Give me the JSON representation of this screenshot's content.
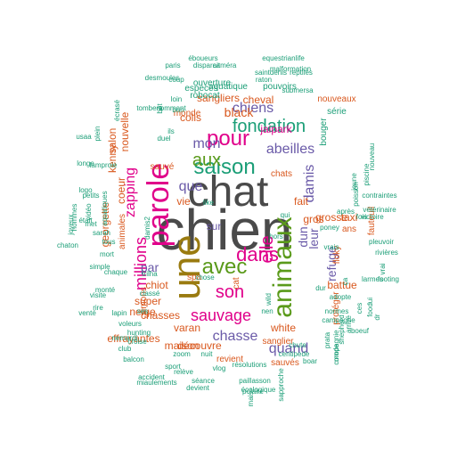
{
  "colors": {
    "dark": "#4a4a4a",
    "pink": "#e0008a",
    "gold": "#9a7b10",
    "green": "#5a9a1a",
    "purple": "#6a5aa8",
    "orange": "#d9581e",
    "teal": "#1b9e77"
  },
  "words": [
    {
      "text": "chien",
      "c": "dark"
    },
    {
      "text": "chat",
      "c": "dark"
    },
    {
      "text": "une",
      "c": "gold"
    },
    {
      "text": "parole",
      "c": "pink"
    },
    {
      "text": "animaux",
      "c": "green"
    },
    {
      "text": "saison",
      "c": "teal"
    },
    {
      "text": "aux",
      "c": "green"
    },
    {
      "text": "pour",
      "c": "pink"
    },
    {
      "text": "fondation",
      "c": "teal"
    },
    {
      "text": "avec",
      "c": "green"
    },
    {
      "text": "dans",
      "c": "pink"
    },
    {
      "text": "son",
      "c": "pink"
    },
    {
      "text": "sauvage",
      "c": "pink"
    },
    {
      "text": "mon",
      "c": "purple"
    },
    {
      "text": "millions",
      "c": "pink"
    },
    {
      "text": "zapping",
      "c": "pink"
    },
    {
      "text": "chiens",
      "c": "purple"
    },
    {
      "text": "abeilles",
      "c": "purple"
    },
    {
      "text": "damis",
      "c": "purple"
    },
    {
      "text": "elle",
      "c": "pink"
    },
    {
      "text": "chasse",
      "c": "purple"
    },
    {
      "text": "quand",
      "c": "purple"
    },
    {
      "text": "que",
      "c": "purple"
    },
    {
      "text": "leur",
      "c": "purple"
    },
    {
      "text": "dun",
      "c": "purple"
    },
    {
      "text": "refuge",
      "c": "purple"
    },
    {
      "text": "nouvelle",
      "c": "orange"
    },
    {
      "text": "coeur",
      "c": "orange"
    },
    {
      "text": "sangliers",
      "c": "orange"
    },
    {
      "text": "cheval",
      "c": "orange"
    },
    {
      "text": "black",
      "c": "orange"
    },
    {
      "text": "fait",
      "c": "orange"
    },
    {
      "text": "grosse",
      "c": "orange"
    },
    {
      "text": "gros",
      "c": "orange"
    },
    {
      "text": "chiot",
      "c": "orange"
    },
    {
      "text": "sur",
      "c": "purple"
    },
    {
      "text": "par",
      "c": "purple"
    },
    {
      "text": "vie",
      "c": "orange"
    },
    {
      "text": "white",
      "c": "orange"
    },
    {
      "text": "découvre",
      "c": "orange"
    },
    {
      "text": "varan",
      "c": "orange"
    },
    {
      "text": "maison",
      "c": "orange"
    },
    {
      "text": "neige",
      "c": "orange"
    },
    {
      "text": "super",
      "c": "orange"
    },
    {
      "text": "chasses",
      "c": "orange"
    },
    {
      "text": "effrayantes",
      "c": "orange"
    },
    {
      "text": "georgette",
      "c": "orange"
    },
    {
      "text": "kenny",
      "c": "orange"
    },
    {
      "text": "salon",
      "c": "orange"
    },
    {
      "text": "colis",
      "c": "orange"
    },
    {
      "text": "monde",
      "c": "orange"
    },
    {
      "text": "spa",
      "c": "orange"
    },
    {
      "text": "jaipark",
      "c": "pink"
    },
    {
      "text": "chats",
      "c": "orange"
    },
    {
      "text": "taxi",
      "c": "orange"
    },
    {
      "text": "ans",
      "c": "orange"
    },
    {
      "text": "floky",
      "c": "orange"
    },
    {
      "text": "battue",
      "c": "orange"
    },
    {
      "text": "protéger",
      "c": "orange"
    },
    {
      "text": "fauteuil",
      "c": "orange"
    },
    {
      "text": "sauvés",
      "c": "orange"
    },
    {
      "text": "sanglier",
      "c": "orange"
    },
    {
      "text": "revient",
      "c": "orange"
    },
    {
      "text": "simons",
      "c": "orange"
    },
    {
      "text": "animales",
      "c": "orange"
    },
    {
      "text": "sauvé",
      "c": "orange"
    },
    {
      "text": "cat",
      "c": "orange"
    },
    {
      "text": "nouveaux",
      "c": "orange"
    },
    {
      "text": "série",
      "c": "teal"
    },
    {
      "text": "bouger",
      "c": "teal"
    },
    {
      "text": "aquatique",
      "c": "teal"
    },
    {
      "text": "pouvoirs",
      "c": "teal"
    },
    {
      "text": "robocat",
      "c": "teal"
    },
    {
      "text": "especes",
      "c": "teal"
    },
    {
      "text": "ouverture",
      "c": "teal"
    },
    {
      "text": "desmoules",
      "c": "teal"
    },
    {
      "text": "paris",
      "c": "teal"
    },
    {
      "text": "éboueurs",
      "c": "teal"
    },
    {
      "text": "disparait",
      "c": "teal"
    },
    {
      "text": "caméra",
      "c": "teal"
    },
    {
      "text": "malformation",
      "c": "teal"
    },
    {
      "text": "equestrianlife",
      "c": "teal"
    },
    {
      "text": "saintdenis",
      "c": "teal"
    },
    {
      "text": "raton",
      "c": "teal"
    },
    {
      "text": "reptiles",
      "c": "teal"
    },
    {
      "text": "submersa",
      "c": "teal"
    },
    {
      "text": "loin",
      "c": "teal"
    },
    {
      "text": "nomment",
      "c": "teal"
    },
    {
      "text": "tombera",
      "c": "teal"
    },
    {
      "text": "coup",
      "c": "teal"
    },
    {
      "text": "bon",
      "c": "teal"
    },
    {
      "text": "ils",
      "c": "teal"
    },
    {
      "text": "duel",
      "c": "teal"
    },
    {
      "text": "bot",
      "c": "teal"
    },
    {
      "text": "écrasé",
      "c": "teal"
    },
    {
      "text": "plein",
      "c": "teal"
    },
    {
      "text": "usaa",
      "c": "teal"
    },
    {
      "text": "longe",
      "c": "teal"
    },
    {
      "text": "lamproie",
      "c": "teal"
    },
    {
      "text": "logo",
      "c": "teal"
    },
    {
      "text": "petits",
      "c": "teal"
    },
    {
      "text": "était",
      "c": "teal"
    },
    {
      "text": "joyeux",
      "c": "teal"
    },
    {
      "text": "hommes",
      "c": "teal"
    },
    {
      "text": "aquatiques",
      "c": "teal"
    },
    {
      "text": "vidéo",
      "c": "teal"
    },
    {
      "text": "met",
      "c": "teal"
    },
    {
      "text": "sarah",
      "c": "teal"
    },
    {
      "text": "tous",
      "c": "teal"
    },
    {
      "text": "mort",
      "c": "teal"
    },
    {
      "text": "chaton",
      "c": "teal"
    },
    {
      "text": "chaque",
      "c": "teal"
    },
    {
      "text": "simple",
      "c": "teal"
    },
    {
      "text": "visite",
      "c": "teal"
    },
    {
      "text": "rire",
      "c": "teal"
    },
    {
      "text": "monté",
      "c": "teal"
    },
    {
      "text": "venté",
      "c": "teal"
    },
    {
      "text": "lapin",
      "c": "teal"
    },
    {
      "text": "voleurs",
      "c": "teal"
    },
    {
      "text": "croise",
      "c": "teal"
    },
    {
      "text": "hunting",
      "c": "teal"
    },
    {
      "text": "nemardi",
      "c": "teal"
    },
    {
      "text": "club",
      "c": "teal"
    },
    {
      "text": "balcon",
      "c": "teal"
    },
    {
      "text": "zoom",
      "c": "teal"
    },
    {
      "text": "sport",
      "c": "teal"
    },
    {
      "text": "nuit",
      "c": "teal"
    },
    {
      "text": "relève",
      "c": "teal"
    },
    {
      "text": "vlog",
      "c": "teal"
    },
    {
      "text": "accident",
      "c": "teal"
    },
    {
      "text": "séance",
      "c": "teal"
    },
    {
      "text": "miaulements",
      "c": "teal"
    },
    {
      "text": "paillasson",
      "c": "teal"
    },
    {
      "text": "devient",
      "c": "teal"
    },
    {
      "text": "écologique",
      "c": "teal"
    },
    {
      "text": "résolutions",
      "c": "teal"
    },
    {
      "text": "polaire",
      "c": "teal"
    },
    {
      "text": "mais",
      "c": "teal"
    },
    {
      "text": "sapproche",
      "c": "teal"
    },
    {
      "text": "chute",
      "c": "teal"
    },
    {
      "text": "centipede",
      "c": "teal"
    },
    {
      "text": "boar",
      "c": "teal"
    },
    {
      "text": "prata",
      "c": "teal"
    },
    {
      "text": "compagnie",
      "c": "teal"
    },
    {
      "text": "shepherd",
      "c": "teal"
    },
    {
      "text": "campagne",
      "c": "teal"
    },
    {
      "text": "mode",
      "c": "teal"
    },
    {
      "text": "boeuf",
      "c": "teal"
    },
    {
      "text": "dur",
      "c": "teal"
    },
    {
      "text": "adopte",
      "c": "teal"
    },
    {
      "text": "vrais",
      "c": "teal"
    },
    {
      "text": "larmes",
      "c": "teal"
    },
    {
      "text": "ces",
      "c": "teal"
    },
    {
      "text": "food",
      "c": "teal"
    },
    {
      "text": "footing",
      "c": "teal"
    },
    {
      "text": "rivières",
      "c": "teal"
    },
    {
      "text": "pleuvoir",
      "c": "teal"
    },
    {
      "text": "victoire",
      "c": "teal"
    },
    {
      "text": "vétérinaire",
      "c": "teal"
    },
    {
      "text": "contraintes",
      "c": "teal"
    },
    {
      "text": "poisson",
      "c": "teal"
    },
    {
      "text": "piscine",
      "c": "teal"
    },
    {
      "text": "nouveau",
      "c": "teal"
    },
    {
      "text": "jeune",
      "c": "teal"
    },
    {
      "text": "normes",
      "c": "teal"
    },
    {
      "text": "poney",
      "c": "teal"
    },
    {
      "text": "qui",
      "c": "teal"
    },
    {
      "text": "après",
      "c": "teal"
    },
    {
      "text": "hors",
      "c": "teal"
    },
    {
      "text": "wild",
      "c": "teal"
    },
    {
      "text": "nen",
      "c": "teal"
    },
    {
      "text": "chose",
      "c": "teal"
    },
    {
      "text": "classé",
      "c": "teal"
    },
    {
      "text": "ses",
      "c": "teal"
    },
    {
      "text": "trilha",
      "c": "teal"
    },
    {
      "text": "damis2",
      "c": "teal"
    },
    {
      "text": "like",
      "c": "teal"
    },
    {
      "text": "fois",
      "c": "teal"
    },
    {
      "text": "lui",
      "c": "teal"
    },
    {
      "text": "arrivé",
      "c": "teal"
    },
    {
      "text": "ça",
      "c": "teal"
    },
    {
      "text": "dr",
      "c": "teal"
    },
    {
      "text": "vrai",
      "c": "teal"
    },
    {
      "text": "patte",
      "c": "teal"
    },
    {
      "text": "premier",
      "c": "teal"
    },
    {
      "text": "sombre",
      "c": "teal"
    },
    {
      "text": "probable",
      "c": "teal"
    }
  ]
}
